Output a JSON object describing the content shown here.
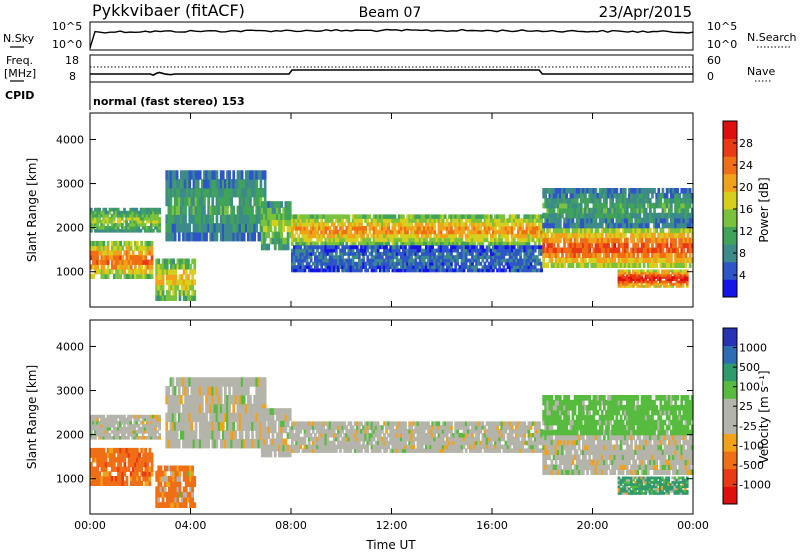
{
  "header": {
    "station": "Pykkvibaer (fitACF)",
    "beam": "Beam 07",
    "date": "23/Apr/2015"
  },
  "sky_panel": {
    "left_label": "N.Sky",
    "right_label": "N.Search",
    "ticks_top": "10^5",
    "ticks_bottom": "10^0"
  },
  "freq_panel": {
    "left_label_1": "Freq.",
    "left_label_2": "[MHz]",
    "left_ticks": [
      "18",
      "8"
    ],
    "right_label": "Nave",
    "right_ticks": [
      "60",
      "0"
    ]
  },
  "cpid": {
    "label": "CPID",
    "value": "normal (fast stereo) 153"
  },
  "chart_data": [
    {
      "type": "heatmap",
      "panel": "power",
      "ylabel": "Slant Range [km]",
      "xlabel": "",
      "xlim": [
        "00:00",
        "24:00"
      ],
      "ylim": [
        200,
        4600
      ],
      "yticks": [
        "1000",
        "2000",
        "3000",
        "4000"
      ],
      "colorbar": {
        "label": "Power [dB]",
        "ticks": [
          "4",
          "8",
          "12",
          "16",
          "20",
          "24",
          "28"
        ],
        "range": [
          0,
          32
        ],
        "colors": [
          "#1515e6",
          "#2e55c8",
          "#3d8a8a",
          "#41a35a",
          "#7ac23c",
          "#d6cf1e",
          "#f2a21a",
          "#ef6e16",
          "#e83a14",
          "#dd0f0f"
        ]
      },
      "bands": [
        {
          "name": "A",
          "t0": 0.0,
          "t1": 2.8,
          "r0": 1900,
          "r1": 2450,
          "level": 14
        },
        {
          "name": "B",
          "t0": 0.0,
          "t1": 2.5,
          "r0": 850,
          "r1": 1700,
          "level": 22
        },
        {
          "name": "C",
          "t0": 2.6,
          "t1": 4.2,
          "r0": 350,
          "r1": 1300,
          "level": 18
        },
        {
          "name": "D",
          "t0": 3.0,
          "t1": 7.0,
          "r0": 1700,
          "r1": 3300,
          "level": 10
        },
        {
          "name": "E",
          "t0": 6.8,
          "t1": 8.0,
          "r0": 1500,
          "r1": 2600,
          "level": 14
        },
        {
          "name": "F",
          "t0": 8.0,
          "t1": 18.0,
          "r0": 1600,
          "r1": 2300,
          "level": 20
        },
        {
          "name": "G",
          "t0": 8.0,
          "t1": 18.0,
          "r0": 1000,
          "r1": 1600,
          "level": 6
        },
        {
          "name": "H",
          "t0": 18.0,
          "t1": 24.0,
          "r0": 1100,
          "r1": 2000,
          "level": 24
        },
        {
          "name": "I",
          "t0": 18.0,
          "t1": 24.0,
          "r0": 2000,
          "r1": 2900,
          "level": 10
        },
        {
          "name": "J",
          "t0": 21.0,
          "t1": 23.8,
          "r0": 650,
          "r1": 1050,
          "level": 27
        }
      ]
    },
    {
      "type": "heatmap",
      "panel": "velocity",
      "ylabel": "Slant Range [km]",
      "xlabel": "Time UT",
      "xlim": [
        "00:00",
        "24:00"
      ],
      "xticks": [
        "00:00",
        "04:00",
        "08:00",
        "12:00",
        "16:00",
        "20:00",
        "00:00"
      ],
      "ylim": [
        200,
        4600
      ],
      "yticks": [
        "1000",
        "2000",
        "3000",
        "4000"
      ],
      "colorbar": {
        "label": "Velocity [m s⁻¹]",
        "ticks": [
          "1000",
          "500",
          "100",
          "25",
          "-25",
          "-100",
          "-500",
          "-1000"
        ],
        "colors": [
          "#2832b4",
          "#2e6db4",
          "#2f9a6b",
          "#57bb3f",
          "#b4b4aa",
          "#b4b4aa",
          "#f2a21a",
          "#ef6e16",
          "#e83a14",
          "#dd0f0f"
        ]
      },
      "bands": [
        {
          "name": "A",
          "t0": 0.0,
          "t1": 2.8,
          "r0": 1900,
          "r1": 2450,
          "vel": 0
        },
        {
          "name": "B",
          "t0": 0.0,
          "t1": 2.5,
          "r0": 850,
          "r1": 1700,
          "vel": -300
        },
        {
          "name": "C",
          "t0": 2.6,
          "t1": 4.2,
          "r0": 350,
          "r1": 1300,
          "vel": -200
        },
        {
          "name": "D",
          "t0": 3.0,
          "t1": 7.0,
          "r0": 1700,
          "r1": 3300,
          "vel": 0
        },
        {
          "name": "E",
          "t0": 6.8,
          "t1": 8.0,
          "r0": 1500,
          "r1": 2600,
          "vel": 0
        },
        {
          "name": "F",
          "t0": 8.0,
          "t1": 18.0,
          "r0": 1600,
          "r1": 2300,
          "vel": 0
        },
        {
          "name": "H",
          "t0": 18.0,
          "t1": 24.0,
          "r0": 1100,
          "r1": 2000,
          "vel": 0
        },
        {
          "name": "I",
          "t0": 18.0,
          "t1": 24.0,
          "r0": 2000,
          "r1": 2900,
          "vel": 50
        },
        {
          "name": "J",
          "t0": 21.0,
          "t1": 23.8,
          "r0": 650,
          "r1": 1050,
          "vel": 200
        }
      ]
    }
  ]
}
